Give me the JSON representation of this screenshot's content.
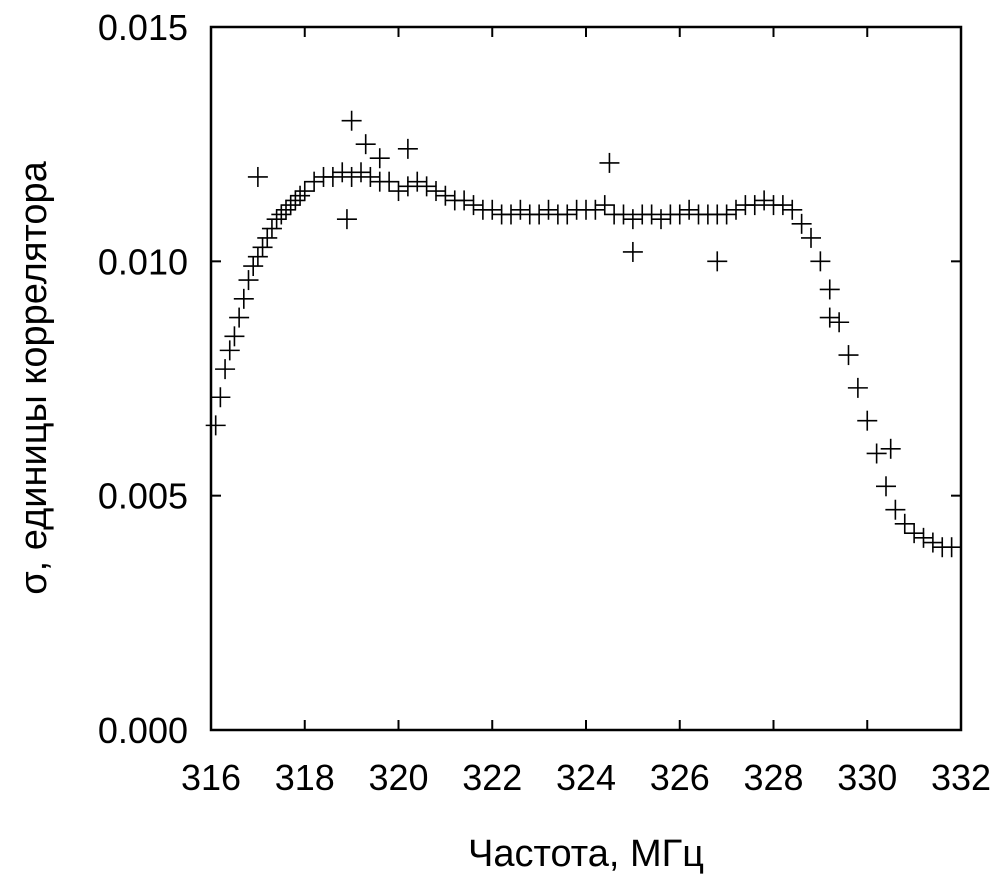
{
  "chart_data": {
    "type": "scatter",
    "title": "",
    "xlabel": "Частота, МГц",
    "ylabel": "σ, единицы коррелятора",
    "xlim": [
      316,
      332
    ],
    "ylim": [
      0.0,
      0.015
    ],
    "x_ticks": [
      316,
      318,
      320,
      322,
      324,
      326,
      328,
      330,
      332
    ],
    "y_ticks": [
      0.0,
      0.005,
      0.01,
      0.015
    ],
    "x_tick_labels": [
      "316",
      "318",
      "320",
      "322",
      "324",
      "326",
      "328",
      "330",
      "332"
    ],
    "y_tick_labels": [
      "0.000",
      "0.005",
      "0.010",
      "0.015"
    ],
    "grid": false,
    "marker": "plus",
    "series": [
      {
        "x": [
          316.1,
          316.2,
          316.3,
          316.4,
          316.5,
          316.6,
          316.7,
          316.8,
          316.9,
          317.0,
          317.1,
          317.2,
          317.3,
          317.4,
          317.5,
          317.6,
          317.7,
          317.8,
          317.9,
          318.0,
          318.2,
          318.4,
          318.6,
          318.8,
          319.0,
          319.2,
          319.4,
          319.6,
          319.8,
          320.0,
          320.2,
          320.4,
          320.6,
          320.8,
          321.0,
          321.2,
          321.4,
          321.6,
          321.8,
          322.0,
          322.2,
          322.4,
          322.6,
          322.8,
          323.0,
          323.2,
          323.4,
          323.6,
          323.8,
          324.0,
          324.2,
          324.4,
          324.6,
          324.8,
          325.0,
          325.2,
          325.4,
          325.6,
          325.8,
          326.0,
          326.2,
          326.4,
          326.6,
          326.8,
          327.0,
          327.2,
          327.4,
          327.6,
          327.8,
          328.0,
          328.2,
          328.4,
          328.6,
          328.8,
          329.0,
          329.2,
          329.4,
          329.6,
          329.8,
          330.0,
          330.2,
          330.4,
          330.6,
          330.8,
          331.0,
          331.2,
          331.4,
          331.6,
          331.8,
          317.0,
          319.0,
          319.3,
          319.6,
          320.2,
          318.9,
          324.5,
          326.8,
          325.0,
          329.2,
          330.5
        ],
        "y": [
          0.0065,
          0.0071,
          0.0077,
          0.0081,
          0.0084,
          0.0088,
          0.0092,
          0.0096,
          0.0099,
          0.0101,
          0.0103,
          0.0105,
          0.0107,
          0.0109,
          0.011,
          0.0111,
          0.0112,
          0.0113,
          0.0114,
          0.0115,
          0.0117,
          0.0118,
          0.0118,
          0.0119,
          0.0118,
          0.0119,
          0.0118,
          0.0117,
          0.0117,
          0.0115,
          0.0116,
          0.0117,
          0.0116,
          0.0115,
          0.0114,
          0.0113,
          0.0113,
          0.0112,
          0.0111,
          0.0111,
          0.011,
          0.011,
          0.0111,
          0.011,
          0.011,
          0.0111,
          0.011,
          0.011,
          0.0111,
          0.0111,
          0.0111,
          0.0112,
          0.011,
          0.011,
          0.0109,
          0.011,
          0.011,
          0.0109,
          0.011,
          0.011,
          0.0111,
          0.011,
          0.011,
          0.011,
          0.011,
          0.0111,
          0.0112,
          0.0112,
          0.0113,
          0.0112,
          0.0112,
          0.0111,
          0.0108,
          0.0105,
          0.01,
          0.0094,
          0.0087,
          0.008,
          0.0073,
          0.0066,
          0.0059,
          0.0052,
          0.0047,
          0.0044,
          0.0042,
          0.0041,
          0.004,
          0.0039,
          0.0039,
          0.0118,
          0.013,
          0.0125,
          0.0122,
          0.0124,
          0.0109,
          0.0121,
          0.01,
          0.0102,
          0.0088,
          0.006
        ]
      }
    ]
  }
}
